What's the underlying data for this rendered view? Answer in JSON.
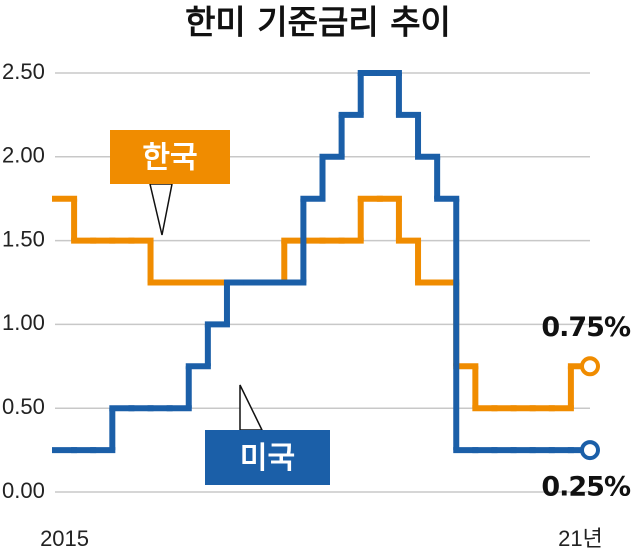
{
  "chart_data": {
    "type": "step-line",
    "title": "한미 기준금리 추이",
    "categories": [
      "2015",
      null,
      null,
      null,
      null,
      null,
      null,
      null,
      null,
      null,
      null,
      null,
      null,
      null,
      null,
      null,
      null,
      null,
      null,
      null,
      null,
      null,
      null,
      null,
      null,
      null,
      null,
      "21년"
    ],
    "series": [
      {
        "name": "한국",
        "color": "#f08c00",
        "end_label": "0.75%",
        "values": [
          1.75,
          1.5,
          1.5,
          1.5,
          1.5,
          1.25,
          1.25,
          1.25,
          1.25,
          1.25,
          1.25,
          1.25,
          1.5,
          1.5,
          1.5,
          1.5,
          1.75,
          1.75,
          1.5,
          1.25,
          1.25,
          0.75,
          0.5,
          0.5,
          0.5,
          0.5,
          0.5,
          0.75
        ]
      },
      {
        "name": "미국",
        "color": "#1b5fa8",
        "end_label": "0.25%",
        "values": [
          0.25,
          0.25,
          0.25,
          0.5,
          0.5,
          0.5,
          0.5,
          0.75,
          1.0,
          1.25,
          1.25,
          1.25,
          1.25,
          1.75,
          2.0,
          2.25,
          2.5,
          2.5,
          2.25,
          2.0,
          1.75,
          0.25,
          0.25,
          0.25,
          0.25,
          0.25,
          0.25,
          0.25
        ]
      }
    ],
    "ylim": [
      0,
      2.5
    ],
    "yticks": [
      {
        "value": 0,
        "label": "0.00"
      },
      {
        "value": 0.5,
        "label": "0.50"
      },
      {
        "value": 1,
        "label": "1.00"
      },
      {
        "value": 1.5,
        "label": "1.50"
      },
      {
        "value": 2,
        "label": "2.00"
      },
      {
        "value": 2.5,
        "label": "2.50"
      }
    ],
    "grid": true
  }
}
